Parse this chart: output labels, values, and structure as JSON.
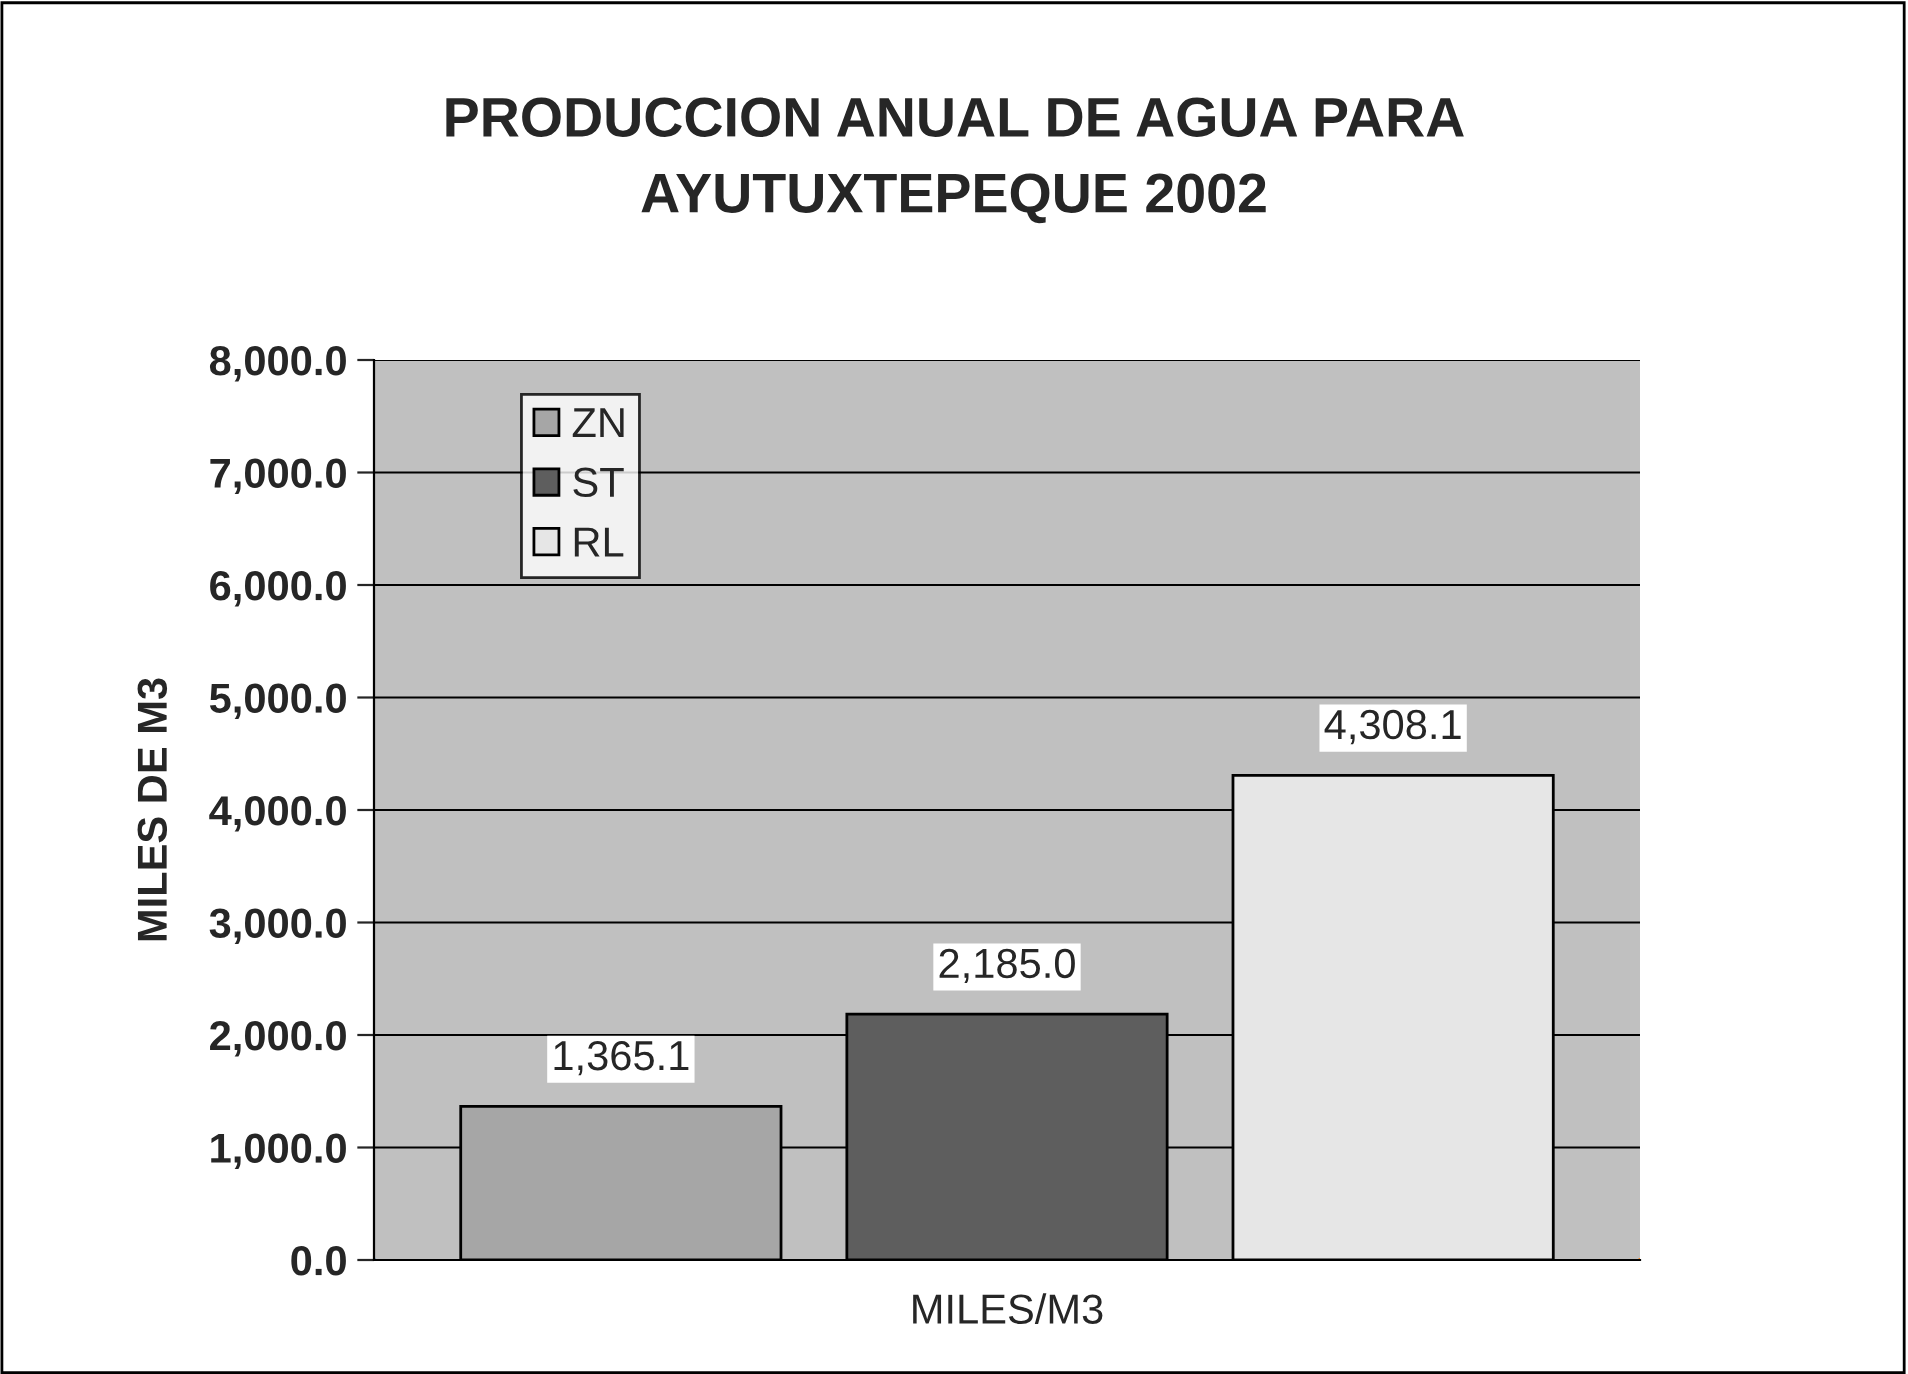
{
  "chart_data": {
    "type": "bar",
    "title": "PRODUCCION ANUAL DE AGUA PARA\nAYUTUXTEPEQUE 2002",
    "ylabel": "MILES DE M3",
    "categories": [
      "MILES/M3"
    ],
    "series": [
      {
        "name": "ZN",
        "color": "#a6a6a6",
        "values": [
          1365.1
        ],
        "value_labels": [
          "1,365.1"
        ]
      },
      {
        "name": "ST",
        "color": "#5e5e5e",
        "values": [
          2185.0
        ],
        "value_labels": [
          "2,185.0"
        ]
      },
      {
        "name": "RL",
        "color": "#e6e6e6",
        "values": [
          4308.1
        ],
        "value_labels": [
          "4,308.1"
        ]
      }
    ],
    "ylim": [
      0,
      8000
    ],
    "yticks": [
      {
        "value": 0,
        "label": "0.0"
      },
      {
        "value": 1000,
        "label": "1,000.0"
      },
      {
        "value": 2000,
        "label": "2,000.0"
      },
      {
        "value": 3000,
        "label": "3,000.0"
      },
      {
        "value": 4000,
        "label": "4,000.0"
      },
      {
        "value": 5000,
        "label": "5,000.0"
      },
      {
        "value": 6000,
        "label": "6,000.0"
      },
      {
        "value": 7000,
        "label": "7,000.0"
      },
      {
        "value": 8000,
        "label": "8,000.0"
      }
    ],
    "grid": "y",
    "legend": "top left"
  }
}
